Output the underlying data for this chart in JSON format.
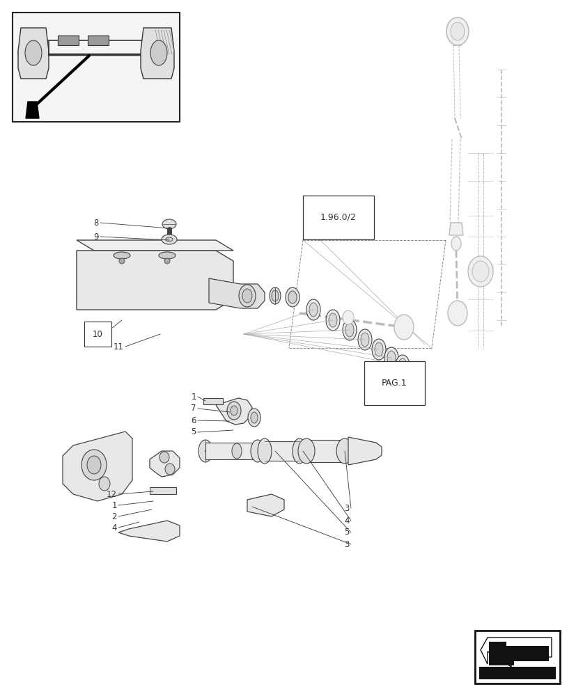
{
  "bg_color": "#ffffff",
  "lc": "#444444",
  "dc": "#333333",
  "lgc": "#bbbbbb",
  "fig_width": 8.28,
  "fig_height": 10.0,
  "dpi": 100,
  "ref_label_1": "1.96.0/2",
  "ref_label_2": "PAG.1"
}
